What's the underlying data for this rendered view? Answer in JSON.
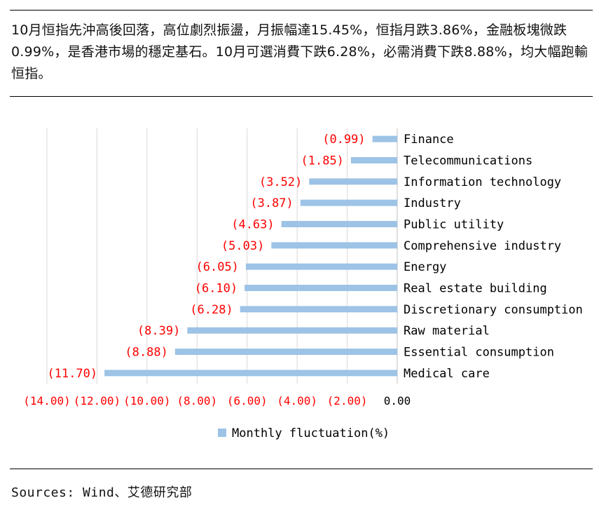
{
  "intro": "10月恒指先沖高後回落，高位劇烈振盪，月振幅達15.45%，恒指月跌3.86%，金融板塊微跌0.99%，是香港市場的穩定基石。10月可選消費下跌6.28%，必需消費下跌8.88%，均大幅跑輸恒指。",
  "source": "Sources: Wind、艾德研究部",
  "colors": {
    "bar": "#9DC3E6",
    "negative": "#FF0000",
    "grid": "#D9D9D9",
    "axis": "#BFBFBF"
  },
  "chart_data": {
    "type": "bar",
    "orientation": "horizontal",
    "categories": [
      "Finance",
      "Telecommunications",
      "Information technology",
      "Industry",
      "Public utility",
      "Comprehensive industry",
      "Energy",
      "Real estate building",
      "Discretionary consumption",
      "Raw material",
      "Essential consumption",
      "Medical care"
    ],
    "series": [
      {
        "name": "Monthly fluctuation(%)",
        "values": [
          -0.99,
          -1.85,
          -3.52,
          -3.87,
          -4.63,
          -5.03,
          -6.05,
          -6.1,
          -6.28,
          -8.39,
          -8.88,
          -11.7
        ]
      }
    ],
    "data_labels": [
      "(0.99)",
      "(1.85)",
      "(3.52)",
      "(3.87)",
      "(4.63)",
      "(5.03)",
      "(6.05)",
      "(6.10)",
      "(6.28)",
      "(8.39)",
      "(8.88)",
      "(11.70)"
    ],
    "xlim": [
      -14,
      0
    ],
    "xticks": [
      -14,
      -12,
      -10,
      -8,
      -6,
      -4,
      -2,
      0
    ],
    "xtick_labels": [
      "(14.00)",
      "(12.00)",
      "(10.00)",
      "(8.00)",
      "(6.00)",
      "(4.00)",
      "(2.00)",
      "0.00"
    ],
    "legend": "bottom-center",
    "grid": true,
    "title": "",
    "xlabel": "",
    "ylabel": ""
  }
}
